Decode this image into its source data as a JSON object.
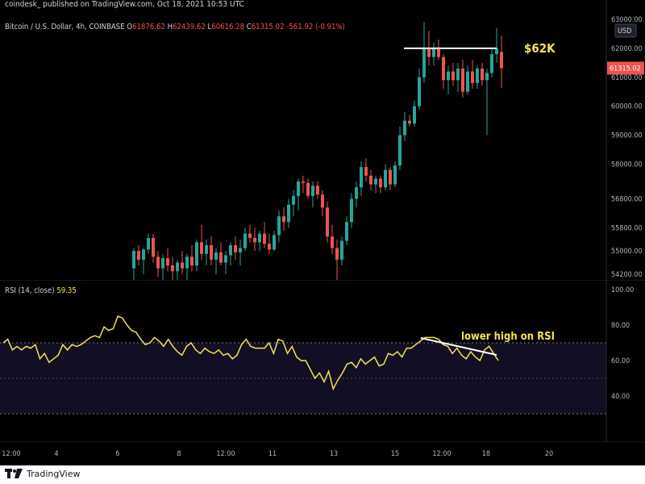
{
  "header": {
    "publisher": "coindesk_ published on TradingView.com, Oct 18, 2021 10:53 UTC",
    "symbol": "Bitcoin / U.S. Dollar, 4h, COINBASE",
    "ohlc": [
      {
        "key": "O",
        "value": "61876.62"
      },
      {
        "key": "H",
        "value": "62439.62"
      },
      {
        "key": "L",
        "value": "60616.28"
      },
      {
        "key": "C",
        "value": "61315.02"
      }
    ],
    "change": "-561.92 (-0.91%)",
    "currency_button": "USD"
  },
  "rsi_legend": {
    "name": "RSI (14, close)",
    "value": "59.35"
  },
  "footer": {
    "logo_text": "TradingView"
  },
  "colors": {
    "up": "#26a69a",
    "down": "#ef5350",
    "rsi_line": "#f4e44c",
    "annotation_text": "#f4e44c",
    "annotation_line": "#ffffff",
    "price_label_bg": "#ef5350",
    "rsi_band_fill": "#120e24"
  },
  "chart_data": [
    {
      "type": "candlestick",
      "title": "Bitcoin / U.S. Dollar, 4h, COINBASE",
      "ylim": [
        54000,
        63000
      ],
      "y_ticks": [
        "63000.00",
        "62000.00",
        "61000.00",
        "60000.00",
        "59000.00",
        "58000.00",
        "56800.00",
        "55800.00",
        "55000.00",
        "54200.00"
      ],
      "last_price_label": "61315.02",
      "x_ticks": [
        "12:00",
        "4",
        "6",
        "8",
        "12:00",
        "11",
        "13",
        "15",
        "12:00",
        "18",
        "20"
      ],
      "candles": [
        {
          "o": 54400,
          "h": 55100,
          "l": 54000,
          "c": 55000
        },
        {
          "o": 55000,
          "h": 55200,
          "l": 54500,
          "c": 54700
        },
        {
          "o": 54700,
          "h": 55100,
          "l": 54200,
          "c": 55050
        },
        {
          "o": 55050,
          "h": 55600,
          "l": 54900,
          "c": 55450
        },
        {
          "o": 55450,
          "h": 55600,
          "l": 54600,
          "c": 54800
        },
        {
          "o": 54800,
          "h": 55000,
          "l": 54100,
          "c": 54400
        },
        {
          "o": 54400,
          "h": 54900,
          "l": 54000,
          "c": 54750
        },
        {
          "o": 54750,
          "h": 55100,
          "l": 54300,
          "c": 54500
        },
        {
          "o": 54500,
          "h": 54800,
          "l": 54000,
          "c": 54300
        },
        {
          "o": 54300,
          "h": 54700,
          "l": 54000,
          "c": 54600
        },
        {
          "o": 54600,
          "h": 55000,
          "l": 54200,
          "c": 54400
        },
        {
          "o": 54400,
          "h": 54900,
          "l": 54000,
          "c": 54800
        },
        {
          "o": 54800,
          "h": 55200,
          "l": 54300,
          "c": 54500
        },
        {
          "o": 54500,
          "h": 55400,
          "l": 54300,
          "c": 55300
        },
        {
          "o": 55300,
          "h": 55900,
          "l": 54700,
          "c": 54900
        },
        {
          "o": 54900,
          "h": 55400,
          "l": 54500,
          "c": 55200
        },
        {
          "o": 55200,
          "h": 55500,
          "l": 54500,
          "c": 54700
        },
        {
          "o": 54700,
          "h": 55100,
          "l": 54200,
          "c": 54950
        },
        {
          "o": 54950,
          "h": 55300,
          "l": 54500,
          "c": 54600
        },
        {
          "o": 54600,
          "h": 55000,
          "l": 54200,
          "c": 54850
        },
        {
          "o": 54850,
          "h": 55300,
          "l": 54500,
          "c": 55200
        },
        {
          "o": 55200,
          "h": 55500,
          "l": 54700,
          "c": 54950
        },
        {
          "o": 54950,
          "h": 55400,
          "l": 54500,
          "c": 55100
        },
        {
          "o": 55100,
          "h": 55800,
          "l": 55000,
          "c": 55600
        },
        {
          "o": 55600,
          "h": 55900,
          "l": 55300,
          "c": 55450
        },
        {
          "o": 55450,
          "h": 55800,
          "l": 55000,
          "c": 55300
        },
        {
          "o": 55300,
          "h": 55700,
          "l": 55000,
          "c": 55600
        },
        {
          "o": 55600,
          "h": 56000,
          "l": 55100,
          "c": 55250
        },
        {
          "o": 55250,
          "h": 55600,
          "l": 54900,
          "c": 55050
        },
        {
          "o": 55050,
          "h": 55700,
          "l": 55000,
          "c": 55550
        },
        {
          "o": 55550,
          "h": 56400,
          "l": 55300,
          "c": 56200
        },
        {
          "o": 56200,
          "h": 56500,
          "l": 55700,
          "c": 56000
        },
        {
          "o": 56000,
          "h": 56800,
          "l": 55800,
          "c": 56600
        },
        {
          "o": 56600,
          "h": 57100,
          "l": 56200,
          "c": 56900
        },
        {
          "o": 56900,
          "h": 57500,
          "l": 56400,
          "c": 57400
        },
        {
          "o": 57400,
          "h": 57600,
          "l": 57000,
          "c": 57350
        },
        {
          "o": 57350,
          "h": 57500,
          "l": 56800,
          "c": 56900
        },
        {
          "o": 56900,
          "h": 57400,
          "l": 56500,
          "c": 57250
        },
        {
          "o": 57250,
          "h": 57400,
          "l": 56800,
          "c": 56950
        },
        {
          "o": 56950,
          "h": 57100,
          "l": 56200,
          "c": 56500
        },
        {
          "o": 56500,
          "h": 56700,
          "l": 55300,
          "c": 55500
        },
        {
          "o": 55500,
          "h": 55900,
          "l": 54900,
          "c": 55100
        },
        {
          "o": 55100,
          "h": 55400,
          "l": 54000,
          "c": 54700
        },
        {
          "o": 54700,
          "h": 55500,
          "l": 54500,
          "c": 55350
        },
        {
          "o": 55350,
          "h": 56200,
          "l": 55200,
          "c": 56000
        },
        {
          "o": 56000,
          "h": 57000,
          "l": 55800,
          "c": 56800
        },
        {
          "o": 56800,
          "h": 57400,
          "l": 56500,
          "c": 57200
        },
        {
          "o": 57200,
          "h": 58100,
          "l": 56900,
          "c": 57900
        },
        {
          "o": 57900,
          "h": 58200,
          "l": 57400,
          "c": 57600
        },
        {
          "o": 57600,
          "h": 57800,
          "l": 57100,
          "c": 57300
        },
        {
          "o": 57300,
          "h": 57600,
          "l": 57000,
          "c": 57500
        },
        {
          "o": 57500,
          "h": 57600,
          "l": 57000,
          "c": 57200
        },
        {
          "o": 57200,
          "h": 58000,
          "l": 57100,
          "c": 57800
        },
        {
          "o": 57800,
          "h": 57900,
          "l": 57100,
          "c": 57300
        },
        {
          "o": 57300,
          "h": 58100,
          "l": 57200,
          "c": 57950
        },
        {
          "o": 57950,
          "h": 59300,
          "l": 57800,
          "c": 59000
        },
        {
          "o": 59000,
          "h": 59800,
          "l": 58800,
          "c": 59500
        },
        {
          "o": 59500,
          "h": 59700,
          "l": 59300,
          "c": 59400
        },
        {
          "o": 59400,
          "h": 60200,
          "l": 59300,
          "c": 60000
        },
        {
          "o": 60000,
          "h": 61300,
          "l": 59900,
          "c": 61000
        },
        {
          "o": 61000,
          "h": 62900,
          "l": 60800,
          "c": 62000
        },
        {
          "o": 62000,
          "h": 62600,
          "l": 61400,
          "c": 61700
        },
        {
          "o": 61700,
          "h": 62200,
          "l": 61400,
          "c": 62000
        },
        {
          "o": 62000,
          "h": 62300,
          "l": 61600,
          "c": 61700
        },
        {
          "o": 61700,
          "h": 61800,
          "l": 60600,
          "c": 60900
        },
        {
          "o": 60900,
          "h": 61400,
          "l": 60400,
          "c": 61200
        },
        {
          "o": 61200,
          "h": 61500,
          "l": 60700,
          "c": 60900
        },
        {
          "o": 60900,
          "h": 61500,
          "l": 60500,
          "c": 61300
        },
        {
          "o": 61300,
          "h": 61600,
          "l": 60300,
          "c": 60500
        },
        {
          "o": 60500,
          "h": 61400,
          "l": 60400,
          "c": 61200
        },
        {
          "o": 61200,
          "h": 61600,
          "l": 60600,
          "c": 60800
        },
        {
          "o": 60800,
          "h": 61400,
          "l": 60600,
          "c": 61300
        },
        {
          "o": 61300,
          "h": 61500,
          "l": 60700,
          "c": 60900
        },
        {
          "o": 60900,
          "h": 61300,
          "l": 59000,
          "c": 61150
        },
        {
          "o": 61150,
          "h": 62000,
          "l": 61000,
          "c": 61800
        },
        {
          "o": 61800,
          "h": 62700,
          "l": 61500,
          "c": 62000
        },
        {
          "o": 61876.62,
          "h": 62439.62,
          "l": 60616.28,
          "c": 61315.02
        }
      ],
      "annotations": [
        {
          "text": "$62K",
          "level": 62000
        }
      ]
    },
    {
      "type": "line",
      "title": "RSI (14, close)",
      "ylim": [
        40,
        100
      ],
      "y_ticks": [
        "100.00",
        "80.00",
        "60.00",
        "40.00"
      ],
      "bands": [
        70,
        30
      ],
      "series": [
        {
          "name": "RSI (14, close)",
          "values": [
            70,
            72,
            66,
            68,
            66,
            68,
            67,
            69,
            61,
            64,
            59,
            61,
            63,
            69,
            66,
            69,
            68,
            69,
            71,
            73,
            74,
            73,
            79,
            77,
            78,
            85,
            84,
            80,
            77,
            76,
            72,
            69,
            70,
            73,
            71,
            68,
            72,
            68,
            65,
            63,
            68,
            70,
            66,
            64,
            67,
            65,
            64,
            66,
            63,
            64,
            61,
            63,
            69,
            72,
            68,
            67,
            67,
            67,
            70,
            64,
            72,
            71,
            64,
            68,
            62,
            60,
            60,
            55,
            50,
            53,
            48,
            54,
            44,
            49,
            53,
            58,
            59,
            56,
            61,
            58,
            60,
            62,
            57,
            58,
            64,
            63,
            65,
            62,
            67,
            67,
            69,
            71,
            73,
            73,
            73,
            72,
            69,
            68,
            64,
            67,
            63,
            61,
            65,
            62,
            60,
            66,
            68,
            64,
            60
          ]
        }
      ],
      "annotations": [
        {
          "text": "lower high on RSI"
        }
      ]
    }
  ]
}
